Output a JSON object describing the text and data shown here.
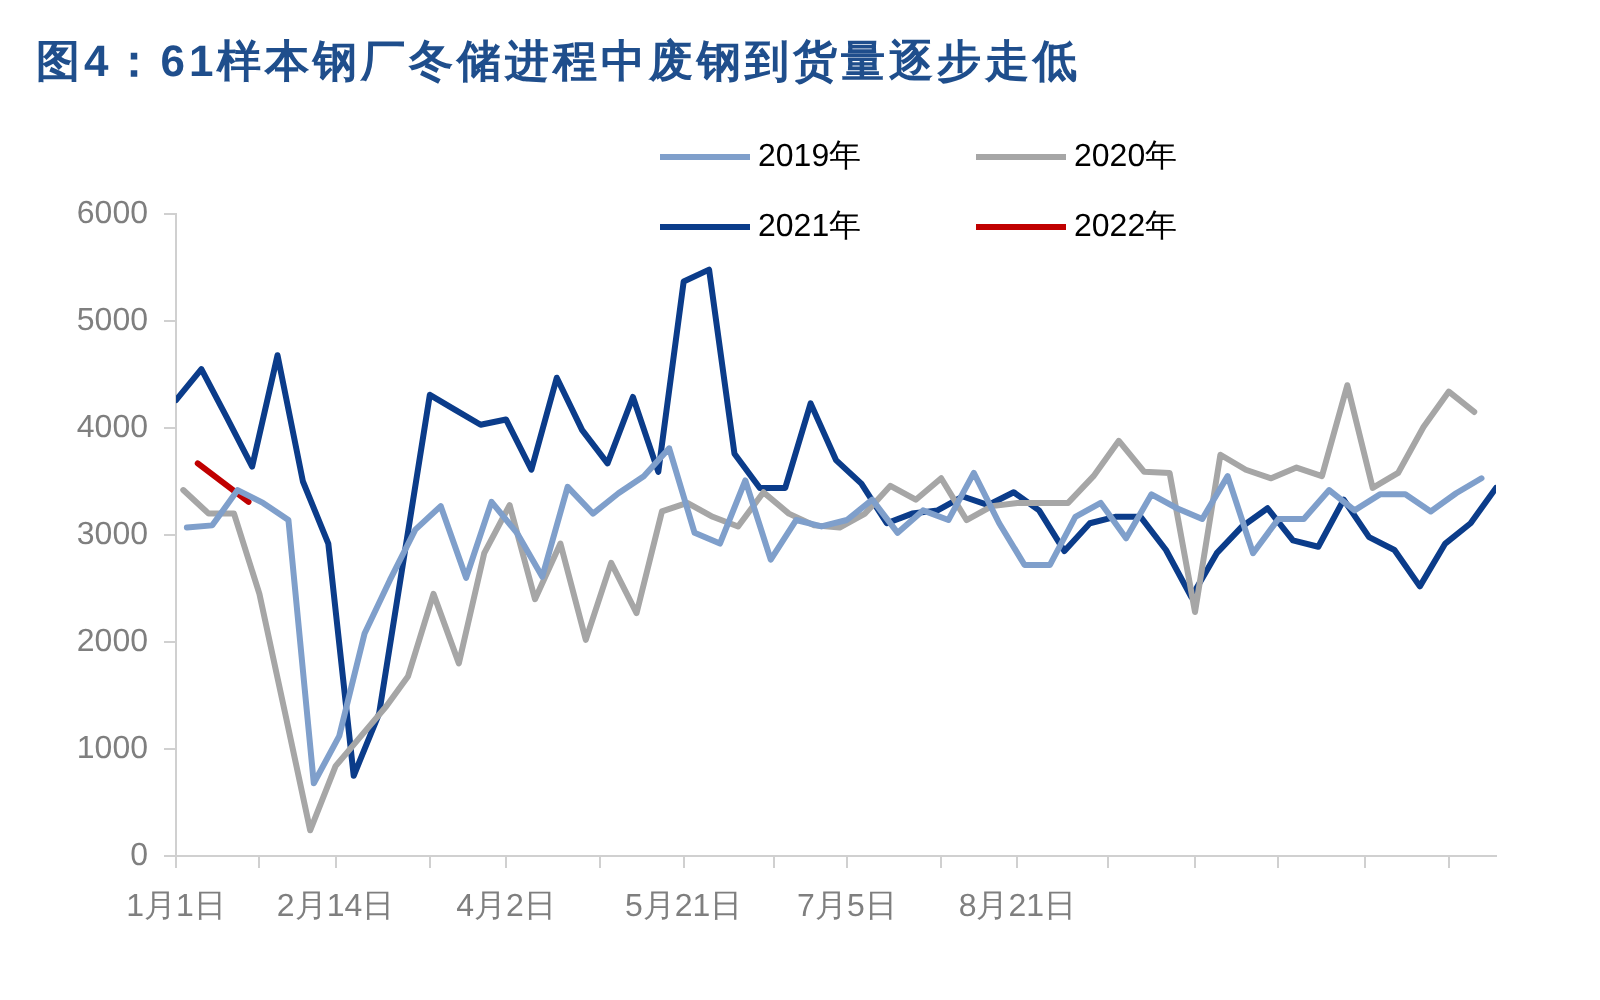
{
  "chart_data": {
    "type": "line",
    "title": "图4：61样本钢厂冬储进程中废钢到货量逐步走低",
    "xlim": [
      "--01-01",
      "--12-31"
    ],
    "xticks": [
      {
        "value": "--01-01",
        "label": "1月1日"
      },
      {
        "value": "--01-24",
        "label": null
      },
      {
        "value": "--02-14",
        "label": "2月14日"
      },
      {
        "value": "--03-12",
        "label": null
      },
      {
        "value": "--04-02",
        "label": "4月2日"
      },
      {
        "value": "--04-28",
        "label": null
      },
      {
        "value": "--05-21",
        "label": "5月21日"
      },
      {
        "value": "--06-15",
        "label": null
      },
      {
        "value": "--07-05",
        "label": "7月5日"
      },
      {
        "value": "--07-31",
        "label": null
      },
      {
        "value": "--08-21",
        "label": "8月21日"
      },
      {
        "value": "--09-15",
        "label": null
      },
      {
        "value": "--10-09",
        "label": null
      },
      {
        "value": "--11-01",
        "label": null
      },
      {
        "value": "--11-25",
        "label": null
      },
      {
        "value": "--12-18",
        "label": null
      }
    ],
    "ylim": [
      0,
      6000
    ],
    "yticks": [
      0,
      1000,
      2000,
      3000,
      4000,
      5000,
      6000
    ],
    "series": [
      {
        "name": "2019年",
        "color": "#7f9fcb",
        "x": [
          "--01-04",
          "--01-11",
          "--01-18",
          "--01-25",
          "--02-01",
          "--02-08",
          "--02-15",
          "--02-22",
          "--03-01",
          "--03-08",
          "--03-15",
          "--03-22",
          "--03-29",
          "--04-05",
          "--04-12",
          "--04-19",
          "--04-26",
          "--05-03",
          "--05-10",
          "--05-17",
          "--05-24",
          "--05-31",
          "--06-07",
          "--06-14",
          "--06-21",
          "--06-28",
          "--07-05",
          "--07-12",
          "--07-19",
          "--07-26",
          "--08-02",
          "--08-09",
          "--08-16",
          "--08-23",
          "--08-30",
          "--09-06",
          "--09-13",
          "--09-20",
          "--09-27",
          "--10-04",
          "--10-11",
          "--10-18",
          "--10-25",
          "--11-01",
          "--11-08",
          "--11-15",
          "--11-22",
          "--11-29",
          "--12-06",
          "--12-13",
          "--12-20",
          "--12-27"
        ],
        "values": [
          3070,
          3090,
          3420,
          3300,
          3140,
          680,
          1120,
          2080,
          2580,
          3050,
          3270,
          2600,
          3310,
          3020,
          2610,
          3450,
          3200,
          3390,
          3550,
          3810,
          3020,
          2920,
          3510,
          2770,
          3140,
          3080,
          3140,
          3330,
          3020,
          3230,
          3140,
          3580,
          3110,
          2720,
          2720,
          3170,
          3300,
          2970,
          3380,
          3250,
          3150,
          3550,
          2830,
          3150,
          3150,
          3420,
          3230,
          3380,
          3380,
          3220,
          3390,
          3530
        ]
      },
      {
        "name": "2020年",
        "color": "#a6a6a6",
        "x": [
          "--01-03",
          "--01-10",
          "--01-17",
          "--01-24",
          "--01-31",
          "--02-07",
          "--02-14",
          "--02-21",
          "--02-28",
          "--03-06",
          "--03-13",
          "--03-20",
          "--03-27",
          "--04-03",
          "--04-10",
          "--04-17",
          "--04-24",
          "--05-01",
          "--05-08",
          "--05-15",
          "--05-22",
          "--05-29",
          "--06-05",
          "--06-12",
          "--06-19",
          "--06-26",
          "--07-03",
          "--07-10",
          "--07-17",
          "--07-24",
          "--07-31",
          "--08-07",
          "--08-14",
          "--08-21",
          "--08-28",
          "--09-04",
          "--09-11",
          "--09-18",
          "--09-25",
          "--10-02",
          "--10-09",
          "--10-16",
          "--10-23",
          "--10-30",
          "--11-06",
          "--11-13",
          "--11-20",
          "--11-27",
          "--12-04",
          "--12-11",
          "--12-18",
          "--12-25"
        ],
        "values": [
          3420,
          3200,
          3200,
          2450,
          1350,
          240,
          840,
          1120,
          1400,
          1680,
          2450,
          1800,
          2830,
          3280,
          2400,
          2920,
          2020,
          2740,
          2270,
          3220,
          3300,
          3170,
          3080,
          3400,
          3200,
          3090,
          3070,
          3200,
          3460,
          3330,
          3530,
          3140,
          3270,
          3300,
          3300,
          3300,
          3550,
          3880,
          3590,
          3580,
          2280,
          3750,
          3610,
          3530,
          3630,
          3550,
          4400,
          3440,
          3580,
          4010,
          4340,
          4150
        ]
      },
      {
        "name": "2021年",
        "color": "#0b3c8a",
        "x": [
          "--01-01",
          "--01-08",
          "--01-15",
          "--01-22",
          "--01-29",
          "--02-05",
          "--02-12",
          "--02-19",
          "--02-26",
          "--03-05",
          "--03-12",
          "--03-19",
          "--03-26",
          "--04-02",
          "--04-09",
          "--04-16",
          "--04-23",
          "--04-30",
          "--05-07",
          "--05-14",
          "--05-21",
          "--05-28",
          "--06-04",
          "--06-11",
          "--06-18",
          "--06-25",
          "--07-02",
          "--07-09",
          "--07-16",
          "--07-23",
          "--07-30",
          "--08-06",
          "--08-13",
          "--08-20",
          "--08-27",
          "--09-03",
          "--09-10",
          "--09-17",
          "--09-24",
          "--10-01",
          "--10-08",
          "--10-15",
          "--10-22",
          "--10-29",
          "--11-05",
          "--11-12",
          "--11-19",
          "--11-26",
          "--12-03",
          "--12-10",
          "--12-17",
          "--12-24",
          "--12-31"
        ],
        "values": [
          4260,
          4550,
          4100,
          3640,
          4680,
          3500,
          2920,
          750,
          1330,
          2820,
          4310,
          4170,
          4030,
          4080,
          3610,
          4470,
          3980,
          3670,
          4290,
          3590,
          5370,
          5480,
          3760,
          3440,
          3440,
          4230,
          3700,
          3480,
          3110,
          3200,
          3230,
          3360,
          3280,
          3400,
          3230,
          2850,
          3110,
          3170,
          3170,
          2860,
          2420,
          2830,
          3080,
          3250,
          2950,
          2890,
          3330,
          2980,
          2860,
          2520,
          2920,
          3110,
          3440
        ]
      },
      {
        "name": "2022年",
        "color": "#c00000",
        "x": [
          "--01-07",
          "--01-14",
          "--01-21"
        ],
        "values": [
          3670,
          3490,
          3310
        ]
      }
    ],
    "legend": "top",
    "grid": false,
    "marker": "none"
  }
}
